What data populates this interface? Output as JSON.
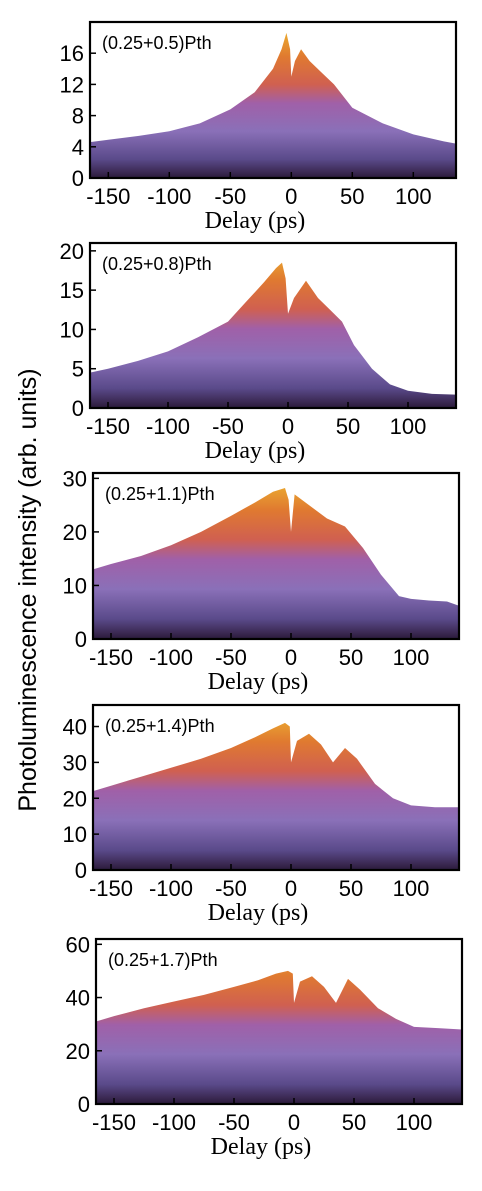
{
  "ylabel": "Photoluminescence intensity (arb. units)",
  "colors": {
    "low": "#2a1a3a",
    "mid1": "#8a70b8",
    "mid2": "#a060a8",
    "mid3": "#d06050",
    "high1": "#e07a30",
    "high2": "#f0c030"
  },
  "chart_data": [
    {
      "type": "area",
      "annotation": "(0.25+0.5)Pth",
      "xlabel": "Delay (ps)",
      "xlim": [
        -165,
        135
      ],
      "ylim": [
        0,
        20
      ],
      "xticks": [
        "-150",
        "-100",
        "-50",
        "0",
        "50",
        "100"
      ],
      "xtick_values": [
        -150,
        -100,
        -50,
        0,
        50,
        100
      ],
      "yticks": [
        "0",
        "4",
        "8",
        "12",
        "16"
      ],
      "ytick_values": [
        0,
        4,
        8,
        12,
        16
      ],
      "x": [
        -165,
        -150,
        -125,
        -100,
        -75,
        -50,
        -30,
        -15,
        -8,
        -4,
        -1,
        0,
        3,
        8,
        15,
        25,
        35,
        50,
        75,
        100,
        125,
        135
      ],
      "y": [
        4.6,
        4.9,
        5.4,
        6.0,
        7.0,
        8.8,
        11.0,
        14.0,
        16.5,
        18.6,
        16.5,
        13.0,
        15.0,
        16.5,
        15.0,
        13.5,
        12.0,
        9.0,
        7.0,
        5.6,
        4.7,
        4.4
      ]
    },
    {
      "type": "area",
      "annotation": "(0.25+0.8)Pth",
      "xlabel": "Delay (ps)",
      "xlim": [
        -165,
        140
      ],
      "ylim": [
        0,
        21
      ],
      "xticks": [
        "-150",
        "-100",
        "-50",
        "0",
        "50",
        "100"
      ],
      "xtick_values": [
        -150,
        -100,
        -50,
        0,
        50,
        100
      ],
      "yticks": [
        "0",
        "5",
        "10",
        "15",
        "20"
      ],
      "ytick_values": [
        0,
        5,
        10,
        15,
        20
      ],
      "x": [
        -165,
        -150,
        -125,
        -100,
        -75,
        -50,
        -35,
        -20,
        -10,
        -5,
        -2,
        0,
        5,
        15,
        25,
        35,
        45,
        55,
        70,
        85,
        100,
        120,
        140
      ],
      "y": [
        4.5,
        5.0,
        6.0,
        7.2,
        9.0,
        11.0,
        13.5,
        16.0,
        17.8,
        18.5,
        16.5,
        12.0,
        14.0,
        16.2,
        14.0,
        12.5,
        11.0,
        8.0,
        5.0,
        3.0,
        2.2,
        1.8,
        1.7
      ]
    },
    {
      "type": "area",
      "annotation": "(0.25+1.1)Pth",
      "xlabel": "Delay (ps)",
      "xlim": [
        -165,
        140
      ],
      "ylim": [
        0,
        31
      ],
      "xticks": [
        "-150",
        "-100",
        "-50",
        "0",
        "50",
        "100"
      ],
      "xtick_values": [
        -150,
        -100,
        -50,
        0,
        50,
        100
      ],
      "yticks": [
        "0",
        "10",
        "20",
        "30"
      ],
      "ytick_values": [
        0,
        10,
        20,
        30
      ],
      "x": [
        -165,
        -150,
        -125,
        -100,
        -75,
        -50,
        -30,
        -15,
        -5,
        -2,
        0,
        3,
        15,
        30,
        45,
        60,
        75,
        90,
        100,
        115,
        130,
        140
      ],
      "y": [
        13.0,
        14.0,
        15.5,
        17.5,
        20.0,
        23.0,
        25.5,
        27.5,
        28.2,
        26.0,
        20.0,
        27.0,
        25.0,
        22.5,
        21.0,
        17.0,
        12.0,
        8.0,
        7.5,
        7.2,
        7.0,
        6.2
      ]
    },
    {
      "type": "area",
      "annotation": "(0.25+1.4)Pth",
      "xlabel": "Delay (ps)",
      "xlim": [
        -165,
        140
      ],
      "ylim": [
        0,
        46
      ],
      "xticks": [
        "-150",
        "-100",
        "-50",
        "0",
        "50",
        "100"
      ],
      "xtick_values": [
        -150,
        -100,
        -50,
        0,
        50,
        100
      ],
      "yticks": [
        "0",
        "10",
        "20",
        "30",
        "40"
      ],
      "ytick_values": [
        0,
        10,
        20,
        30,
        40
      ],
      "x": [
        -165,
        -150,
        -125,
        -100,
        -75,
        -50,
        -30,
        -15,
        -5,
        -1,
        0,
        5,
        15,
        25,
        35,
        45,
        55,
        70,
        85,
        100,
        120,
        140
      ],
      "y": [
        22.0,
        23.5,
        26.0,
        28.5,
        31.0,
        34.0,
        37.0,
        39.5,
        41.0,
        40.0,
        30.0,
        36.0,
        38.0,
        35.0,
        30.0,
        34.0,
        31.0,
        24.0,
        20.0,
        18.0,
        17.5,
        17.5
      ]
    },
    {
      "type": "area",
      "annotation": "(0.25+1.7)Pth",
      "xlabel": "Delay (ps)",
      "xlim": [
        -165,
        140
      ],
      "ylim": [
        0,
        62
      ],
      "xticks": [
        "-150",
        "-100",
        "-50",
        "0",
        "50",
        "100"
      ],
      "xtick_values": [
        -150,
        -100,
        -50,
        0,
        50,
        100
      ],
      "yticks": [
        "0",
        "20",
        "40",
        "60"
      ],
      "ytick_values": [
        0,
        20,
        40,
        60
      ],
      "x": [
        -165,
        -150,
        -125,
        -100,
        -75,
        -50,
        -30,
        -15,
        -5,
        -1,
        0,
        5,
        15,
        25,
        35,
        45,
        55,
        70,
        85,
        100,
        120,
        140
      ],
      "y": [
        31.0,
        33.0,
        36.0,
        38.5,
        41.0,
        44.0,
        46.5,
        49.0,
        50.0,
        49.0,
        38.0,
        46.0,
        48.0,
        44.0,
        38.0,
        47.0,
        43.0,
        36.0,
        32.0,
        29.0,
        28.5,
        28.0
      ]
    }
  ]
}
